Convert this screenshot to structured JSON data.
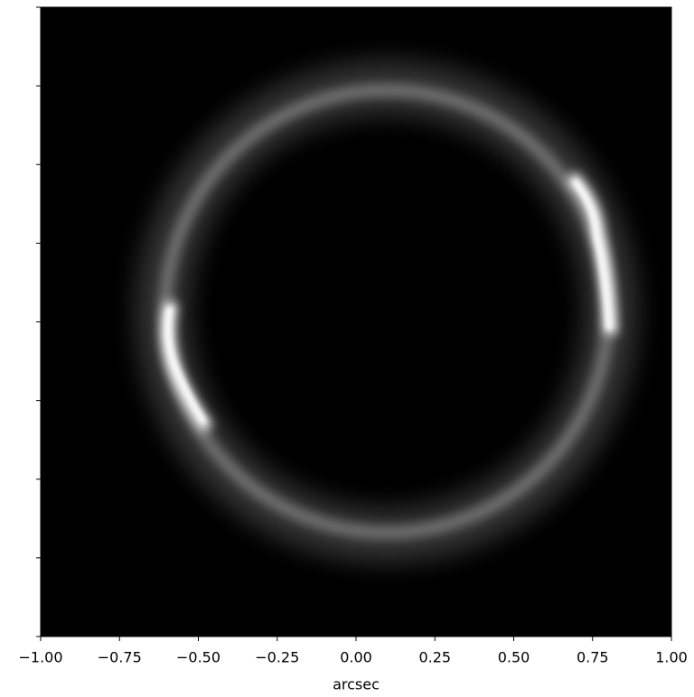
{
  "chart_data": {
    "type": "image",
    "x_label": "arcsec",
    "xlim": [
      -1,
      1
    ],
    "xticks": [
      {
        "value": -1,
        "label": "−1.00"
      },
      {
        "value": -0.75,
        "label": "−0.75"
      },
      {
        "value": -0.5,
        "label": "−0.50"
      },
      {
        "value": -0.25,
        "label": "−0.25"
      },
      {
        "value": 0,
        "label": "0.00"
      },
      {
        "value": 0.25,
        "label": "0.25"
      },
      {
        "value": 0.5,
        "label": "0.50"
      },
      {
        "value": 0.75,
        "label": "0.75"
      },
      {
        "value": 1,
        "label": "1.00"
      }
    ],
    "ylim": [
      -1,
      1
    ],
    "yticks": [
      -1,
      -0.75,
      -0.5,
      -0.25,
      0,
      0.25,
      0.5,
      0.75,
      1
    ],
    "colormap": "gray"
  }
}
